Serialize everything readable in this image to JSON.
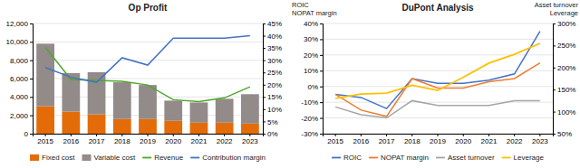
{
  "chart_data": [
    {
      "type": "bar",
      "title": "Op Profit",
      "stacked": true,
      "grid": true,
      "legend": "bottom",
      "categories": [
        "2015",
        "2016",
        "2017",
        "2018",
        "2019",
        "2020",
        "2021",
        "2022",
        "2023"
      ],
      "series": [
        {
          "name": "Fixed cost",
          "color": "#E36C09",
          "values": [
            3000,
            2400,
            2100,
            1600,
            1600,
            1400,
            1200,
            1200,
            1100
          ]
        },
        {
          "name": "Variable cost",
          "color": "#938A8A",
          "values": [
            6800,
            4200,
            4600,
            4000,
            3700,
            2200,
            2200,
            2600,
            3200
          ]
        },
        {
          "name": "Revenue",
          "type": "line",
          "color": "#4EA72A",
          "values": [
            9400,
            5900,
            5800,
            5700,
            5300,
            3700,
            3500,
            3900,
            5100
          ]
        },
        {
          "name": "Contribution margin",
          "type": "line",
          "axis": "y2",
          "color": "#4472C4",
          "values": [
            0.27,
            0.23,
            0.21,
            0.31,
            0.28,
            0.39,
            0.39,
            0.39,
            0.4
          ]
        }
      ],
      "ylim": [
        0,
        12000
      ],
      "yticks": [
        0,
        {
          "value": 2000,
          "label": "2,000"
        },
        {
          "value": 4000,
          "label": "4,000"
        },
        {
          "value": 6000,
          "label": "6,000"
        },
        {
          "value": 8000,
          "label": "8,000"
        },
        {
          "value": 10000,
          "label": "10,000"
        },
        {
          "value": 12000,
          "label": "12,000"
        }
      ],
      "y2lim": [
        0.0,
        0.45
      ],
      "y2ticks": [
        {
          "value": 0.0,
          "label": "0%"
        },
        {
          "value": 0.05,
          "label": "5%"
        },
        {
          "value": 0.1,
          "label": "10%"
        },
        {
          "value": 0.15,
          "label": "15%"
        },
        {
          "value": 0.2,
          "label": "20%"
        },
        {
          "value": 0.25,
          "label": "25%"
        },
        {
          "value": 0.3,
          "label": "30%"
        },
        {
          "value": 0.35,
          "label": "35%"
        },
        {
          "value": 0.4,
          "label": "40%"
        },
        {
          "value": 0.45,
          "label": "45%"
        }
      ]
    },
    {
      "type": "line",
      "title": "DuPont Analysis",
      "grid": true,
      "legend": "bottom",
      "ylabel": "ROIC\nNOPAT margin",
      "y2label": "Asset turnover\nLeverage",
      "categories": [
        "2015",
        "2016",
        "2017",
        "2018",
        "2019",
        "2020",
        "2021",
        "2022",
        "2023"
      ],
      "series": [
        {
          "name": "ROIC",
          "color": "#4472C4",
          "values": [
            -0.05,
            -0.07,
            -0.14,
            0.05,
            0.02,
            0.02,
            0.04,
            0.08,
            0.35
          ]
        },
        {
          "name": "NOPAT margin",
          "color": "#ED7D31",
          "values": [
            -0.05,
            -0.15,
            -0.19,
            0.05,
            -0.01,
            -0.01,
            0.03,
            0.05,
            0.15
          ]
        },
        {
          "name": "Asset turnover",
          "color": "#A5A5A5",
          "values": [
            -0.13,
            -0.18,
            -0.2,
            -0.09,
            -0.12,
            -0.12,
            -0.12,
            -0.09,
            -0.09
          ]
        },
        {
          "name": "Leverage",
          "axis": "y2",
          "color": "#FFC000",
          "values": [
            1.3,
            1.4,
            1.42,
            1.6,
            1.48,
            1.78,
            2.1,
            2.3,
            2.55
          ]
        }
      ],
      "ylim": [
        -0.3,
        0.4
      ],
      "yticks": [
        {
          "value": -0.3,
          "label": "-30%"
        },
        {
          "value": -0.2,
          "label": "-20%"
        },
        {
          "value": -0.1,
          "label": "-10%"
        },
        {
          "value": 0.0,
          "label": "0%"
        },
        {
          "value": 0.1,
          "label": "10%"
        },
        {
          "value": 0.2,
          "label": "20%"
        },
        {
          "value": 0.3,
          "label": "30%"
        },
        {
          "value": 0.4,
          "label": "40%"
        }
      ],
      "y2lim": [
        0.5,
        3.0
      ],
      "y2ticks": [
        {
          "value": 0.5,
          "label": "50%"
        },
        {
          "value": 1.0,
          "label": "100%"
        },
        {
          "value": 1.5,
          "label": "150%"
        },
        {
          "value": 2.0,
          "label": "200%"
        },
        {
          "value": 2.5,
          "label": "250%"
        },
        {
          "value": 3.0,
          "label": "300%"
        }
      ]
    }
  ]
}
